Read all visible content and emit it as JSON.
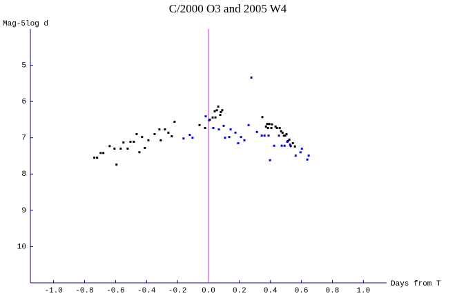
{
  "chart_data": {
    "type": "scatter",
    "title": "C/2000 O3 and 2005 W4",
    "ylabel": "Mag-5log d",
    "xlabel": "Days from T",
    "xlim": [
      -1.15,
      1.15
    ],
    "ylim": [
      4,
      11
    ],
    "y_inverted": true,
    "vline": 0,
    "vline_color": "#cc33cc",
    "xticks": [
      {
        "value": -1.0,
        "label": "-1.0"
      },
      -0.8,
      -0.6,
      -0.4,
      -0.2,
      {
        "value": 0,
        "label": "0.0"
      },
      0.2,
      0.4,
      0.6,
      0.8,
      {
        "value": 1.0,
        "label": "1.0"
      }
    ],
    "yticks": [
      5,
      6,
      7,
      8,
      9,
      10
    ],
    "series": [
      {
        "color": "#000000",
        "x": [
          -0.737,
          -0.719,
          -0.696,
          -0.679,
          -0.638,
          -0.607,
          -0.594,
          -0.567,
          -0.549,
          -0.522,
          -0.504,
          -0.482,
          -0.464,
          -0.446,
          -0.429,
          -0.411,
          -0.388,
          -0.348,
          -0.317,
          -0.308,
          -0.281,
          -0.259,
          -0.237,
          -0.219,
          -0.058,
          -0.022,
          0.009,
          0.027,
          0.045,
          0.04,
          0.054,
          0.063,
          0.076,
          0.08,
          0.089,
          0.348,
          0.371,
          0.379,
          0.384,
          0.393,
          0.406,
          0.41,
          0.433,
          0.442,
          0.46,
          0.469,
          0.478,
          0.487,
          0.496,
          0.504,
          0.513,
          0.522,
          0.531,
          0.545,
          0.558
        ],
        "values": [
          7.55,
          7.55,
          7.42,
          7.42,
          7.23,
          7.3,
          7.74,
          7.3,
          7.13,
          7.3,
          7.11,
          7.11,
          6.9,
          7.4,
          6.98,
          7.28,
          7.07,
          6.9,
          6.77,
          7.07,
          6.77,
          6.86,
          6.96,
          6.56,
          6.65,
          6.73,
          6.5,
          6.44,
          6.44,
          6.27,
          6.24,
          6.14,
          6.37,
          6.29,
          6.24,
          6.43,
          6.69,
          6.62,
          6.73,
          6.62,
          6.73,
          6.63,
          6.69,
          6.73,
          6.73,
          6.82,
          6.86,
          6.94,
          6.94,
          6.9,
          7.09,
          7.05,
          7.23,
          7.15,
          7.24
        ]
      },
      {
        "color": "#0000ee",
        "x": [
          -0.161,
          -0.121,
          -0.103,
          -0.018,
          0.004,
          0.031,
          0.067,
          0.098,
          0.107,
          0.134,
          0.143,
          0.174,
          0.192,
          0.21,
          0.232,
          0.259,
          0.277,
          0.313,
          0.344,
          0.362,
          0.388,
          0.397,
          0.424,
          0.455,
          0.473,
          0.491,
          0.509,
          0.527,
          0.563,
          0.594,
          0.603,
          0.638,
          0.647
        ],
        "values": [
          7.02,
          6.92,
          7.0,
          6.41,
          6.52,
          6.73,
          6.77,
          6.67,
          7.0,
          6.98,
          6.77,
          6.86,
          7.15,
          6.98,
          7.07,
          6.65,
          5.34,
          6.84,
          6.94,
          6.94,
          6.94,
          7.62,
          7.22,
          6.94,
          7.22,
          7.22,
          7.11,
          7.19,
          7.49,
          7.4,
          7.3,
          7.6,
          7.49
        ]
      }
    ]
  }
}
